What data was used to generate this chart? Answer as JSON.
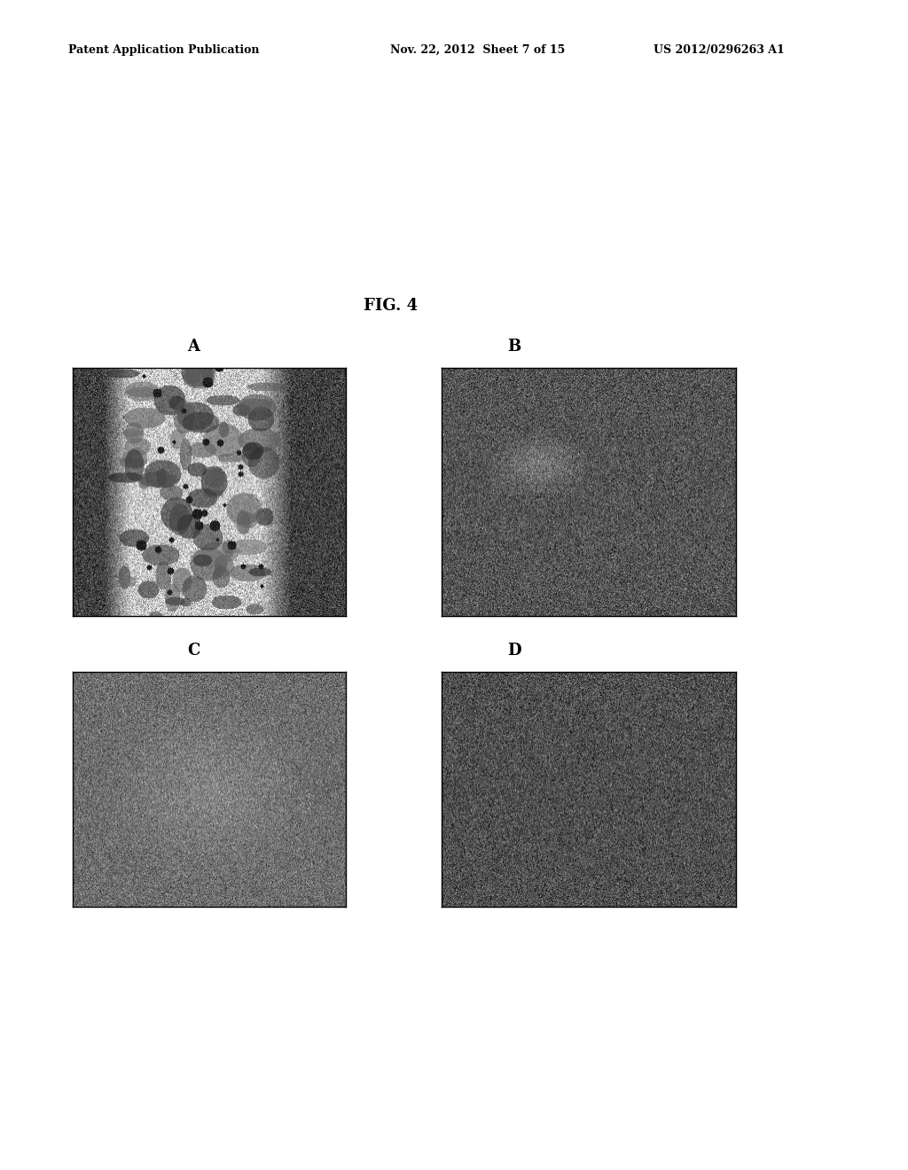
{
  "title": "FIG. 4",
  "header_left": "Patent Application Publication",
  "header_mid": "Nov. 22, 2012  Sheet 7 of 15",
  "header_right": "US 2012/0296263 A1",
  "panel_labels": [
    "A",
    "B",
    "C",
    "D"
  ],
  "fig_width": 10.24,
  "fig_height": 13.2,
  "bg_color": "#ffffff",
  "header_fontsize": 9,
  "title_fontsize": 13,
  "label_fontsize": 13,
  "seed": 42
}
